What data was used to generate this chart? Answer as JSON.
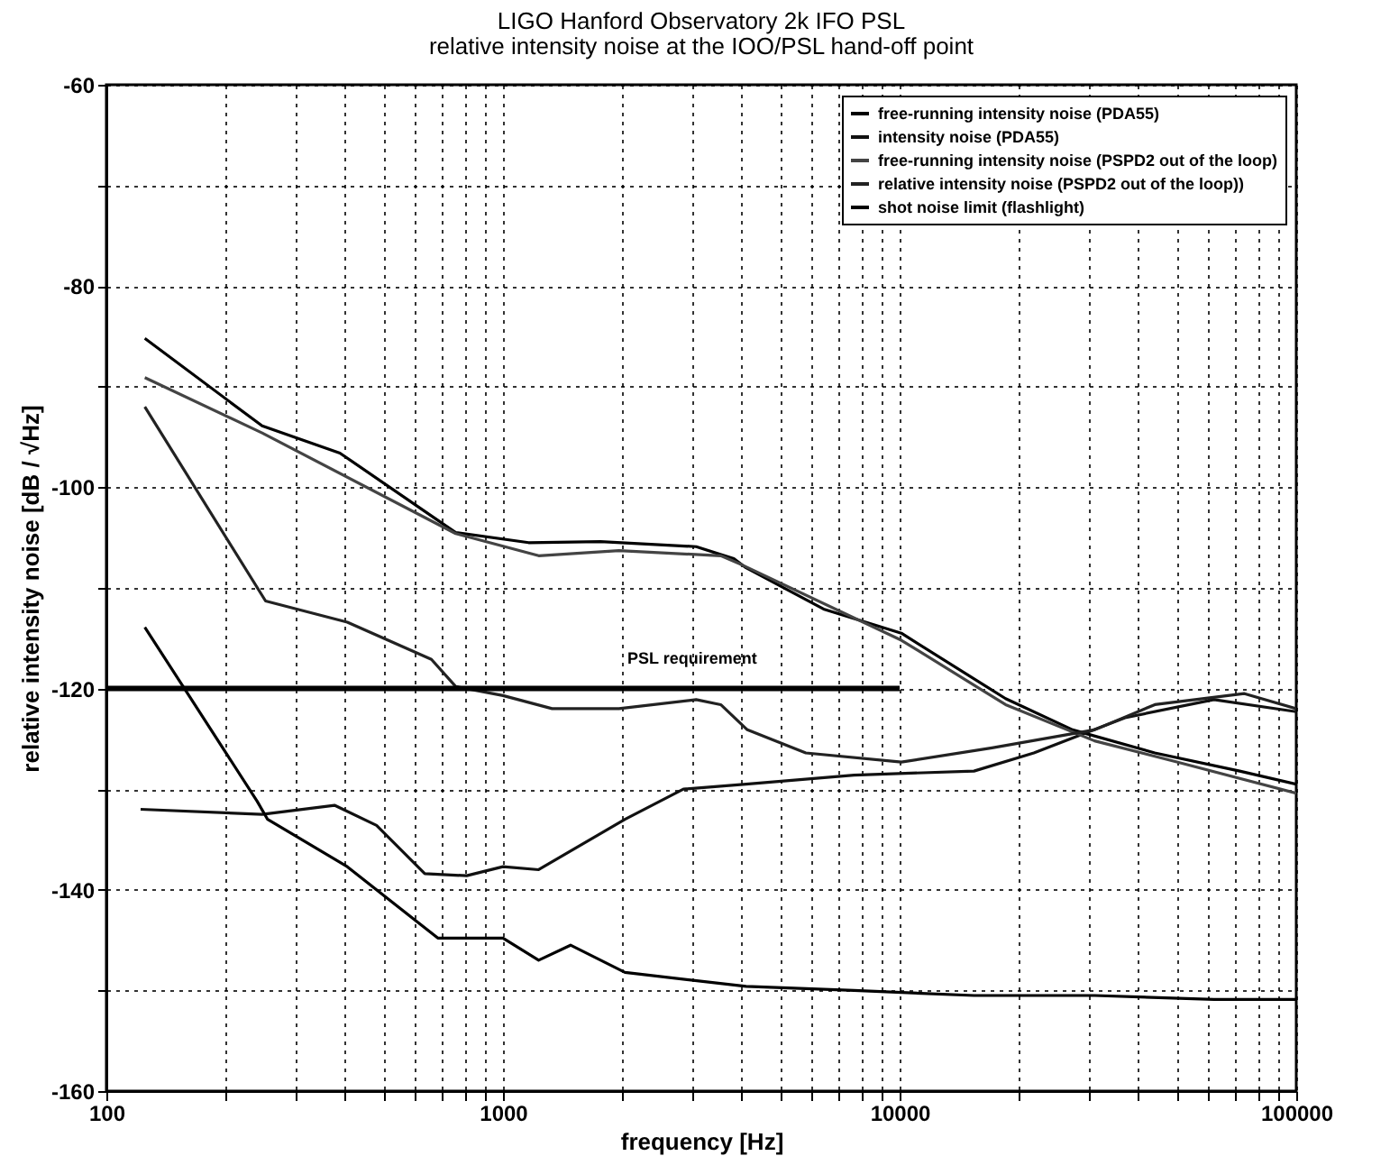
{
  "chart_data": {
    "type": "line",
    "title": "LIGO Hanford Observatory 2k IFO PSL",
    "subtitle": "relative intensity noise at the IOO/PSL hand-off point",
    "xlabel": "frequency [Hz]",
    "ylabel": "relative intensity noise [dB / √Hz]",
    "log": "x",
    "xlim": [
      100,
      100000
    ],
    "ylim": [
      -160,
      -60
    ],
    "xticks": [
      100,
      {
        "value": 200,
        "label": null
      },
      {
        "value": 300,
        "label": null
      },
      {
        "value": 400,
        "label": null
      },
      {
        "value": 500,
        "label": null
      },
      {
        "value": 600,
        "label": null
      },
      {
        "value": 700,
        "label": null
      },
      {
        "value": 800,
        "label": null
      },
      {
        "value": 900,
        "label": null
      },
      1000,
      {
        "value": 2000,
        "label": null
      },
      {
        "value": 3000,
        "label": null
      },
      {
        "value": 4000,
        "label": null
      },
      {
        "value": 5000,
        "label": null
      },
      {
        "value": 6000,
        "label": null
      },
      {
        "value": 7000,
        "label": null
      },
      {
        "value": 8000,
        "label": null
      },
      {
        "value": 9000,
        "label": null
      },
      10000,
      {
        "value": 20000,
        "label": null
      },
      {
        "value": 30000,
        "label": null
      },
      {
        "value": 40000,
        "label": null
      },
      {
        "value": 50000,
        "label": null
      },
      {
        "value": 60000,
        "label": null
      },
      {
        "value": 70000,
        "label": null
      },
      {
        "value": 80000,
        "label": null
      },
      {
        "value": 90000,
        "label": null
      },
      100000
    ],
    "yticks": [
      -160,
      {
        "value": -150,
        "label": null
      },
      -140,
      {
        "value": -130,
        "label": null
      },
      -120,
      {
        "value": -110,
        "label": null
      },
      -100,
      {
        "value": -90,
        "label": null
      },
      -80,
      {
        "value": -70,
        "label": null
      },
      -60
    ],
    "grid": true,
    "legend": "top right",
    "line_style": "solid",
    "marker": "none",
    "series": [
      {
        "name": "free-running intensity noise (PDA55)",
        "color": "#000000",
        "x": [
          125,
          247,
          388,
          760,
          1160,
          1760,
          3070,
          3820,
          4100,
          6430,
          10100,
          18500,
          27300,
          44000,
          72000,
          100000
        ],
        "values": [
          -85.2,
          -93.9,
          -96.6,
          -104.5,
          -105.5,
          -105.4,
          -105.9,
          -107.1,
          -108,
          -112.1,
          -114.5,
          -121,
          -124.1,
          -126.4,
          -128.2,
          -129.5
        ]
      },
      {
        "name": "intensity noise (PDA55)",
        "color": "#111111",
        "x": [
          122,
          247,
          376,
          480,
          635,
          810,
          1000,
          1230,
          2030,
          2850,
          4100,
          7670,
          15400,
          21800,
          37000,
          62000,
          100000
        ],
        "values": [
          -132,
          -132.5,
          -131.6,
          -133.6,
          -138.4,
          -138.6,
          -137.7,
          -138,
          -133,
          -130,
          -129.5,
          -128.6,
          -128.2,
          -126.4,
          -122.9,
          -121.1,
          -122.3
        ]
      },
      {
        "name": "free-running intensity noise (PSPD2 out of the loop)",
        "color": "#444444",
        "x": [
          125,
          247,
          760,
          1230,
          1960,
          3540,
          4000,
          10100,
          18500,
          31000,
          50000,
          100000
        ],
        "values": [
          -89.1,
          -94.6,
          -104.6,
          -106.8,
          -106.3,
          -106.8,
          -107.7,
          -115.2,
          -121.6,
          -125.2,
          -127.3,
          -130.4
        ]
      },
      {
        "name": "relative intensity noise (PSPD2 out of the loop))",
        "color": "#222222",
        "x": [
          125,
          252,
          405,
          660,
          760,
          1000,
          1330,
          1960,
          3070,
          3540,
          4130,
          5800,
          10100,
          17100,
          31000,
          44000,
          74000,
          100000
        ],
        "values": [
          -92,
          -111.3,
          -113.4,
          -117.1,
          -119.8,
          -120.7,
          -122,
          -122,
          -121.1,
          -121.6,
          -124.1,
          -126.4,
          -127.3,
          -125.9,
          -124.1,
          -121.6,
          -120.5,
          -122
        ]
      },
      {
        "name": "shot noise limit (flashlight)",
        "color": "#000000",
        "x": [
          125,
          240,
          255,
          405,
          685,
          1000,
          1230,
          1480,
          2030,
          4100,
          7670,
          15400,
          31000,
          62000,
          100000
        ],
        "values": [
          -113.9,
          -131.2,
          -133,
          -137.7,
          -144.8,
          -144.8,
          -147,
          -145.5,
          -148.2,
          -149.6,
          -150,
          -150.5,
          -150.5,
          -150.9,
          -150.9
        ]
      },
      {
        "color": "#000000",
        "x": [
          100,
          10000
        ],
        "values": [
          -120,
          -120
        ]
      }
    ],
    "annotations": [
      {
        "text": "PSL requirement",
        "x": 3000,
        "y": -120
      }
    ]
  }
}
